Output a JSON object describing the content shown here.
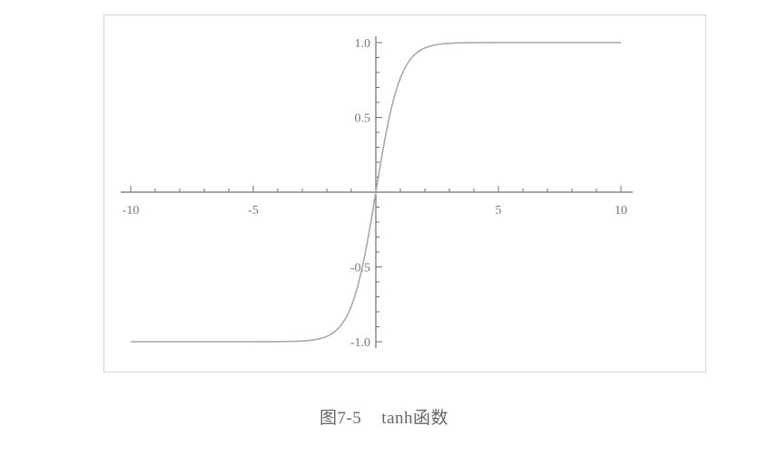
{
  "colors": {
    "axis": "#6f6f6f",
    "curve": "#a9a9a9",
    "frame": "#d4d4d4",
    "text": "#777777"
  },
  "caption": {
    "figure_number": "图7-5",
    "title": "tanh函数"
  },
  "chart_data": {
    "type": "line",
    "function": "tanh",
    "title": "",
    "xlabel": "",
    "ylabel": "",
    "xlim": [
      -10,
      10
    ],
    "ylim": [
      -1,
      1
    ],
    "grid": false,
    "x_ticks": [
      -10,
      -5,
      5,
      10
    ],
    "x_tick_labels": [
      "-10",
      "-5",
      "5",
      "10"
    ],
    "y_ticks": [
      1.0,
      0.5,
      -0.5,
      -1.0
    ],
    "y_tick_labels": [
      "1.0",
      "0.5",
      "-0.5",
      "-1.0"
    ],
    "x_minor_tick_step": 1,
    "y_minor_tick_step": 0.1,
    "series": [
      {
        "x": [
          -10,
          -8,
          -6,
          -4,
          -3,
          -2.5,
          -2,
          -1.5,
          -1,
          -0.5,
          0,
          0.5,
          1,
          1.5,
          2,
          2.5,
          3,
          4,
          6,
          8,
          10
        ],
        "y": [
          -1.0,
          -1.0,
          -1.0,
          -0.999,
          -0.995,
          -0.987,
          -0.964,
          -0.905,
          -0.762,
          -0.462,
          0.0,
          0.462,
          0.762,
          0.905,
          0.964,
          0.987,
          0.995,
          0.999,
          1.0,
          1.0,
          1.0
        ]
      }
    ]
  }
}
